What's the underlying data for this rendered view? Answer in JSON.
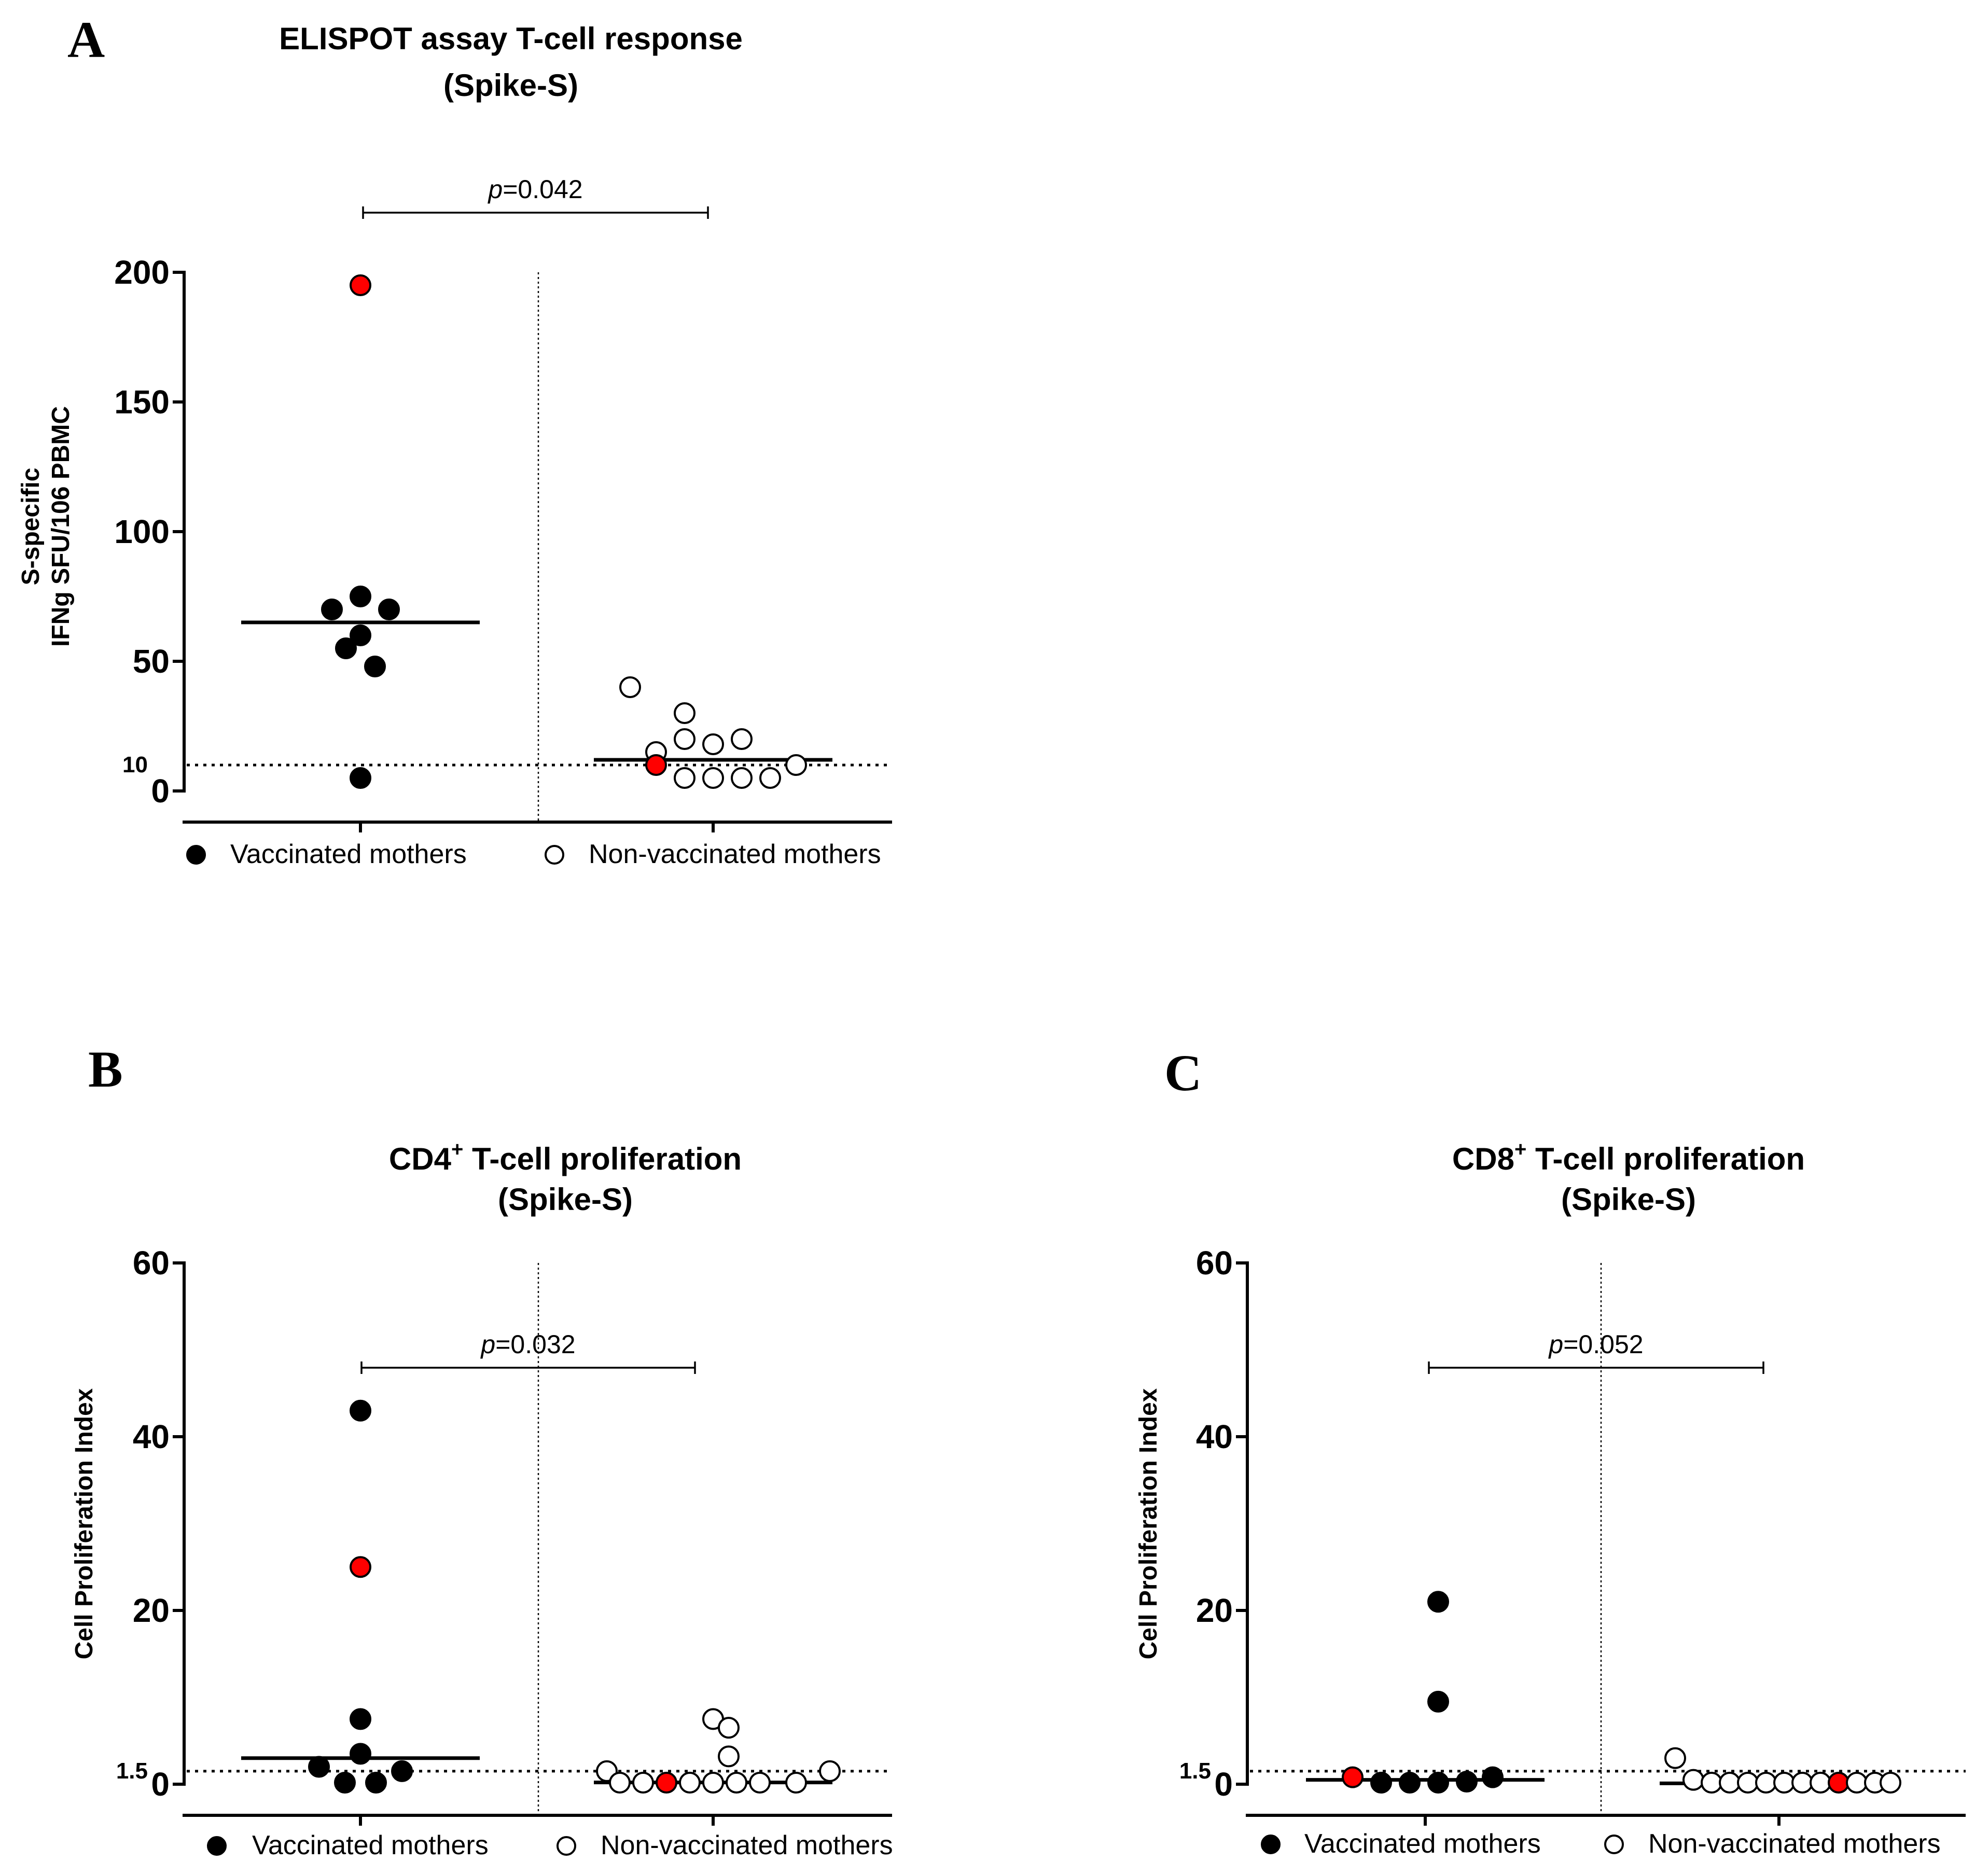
{
  "colors": {
    "ink": "#000000",
    "highlight": "#ff0000",
    "open_fill": "#ffffff"
  },
  "chart_data": [
    {
      "panel_label": "A",
      "type": "scatter",
      "title_line1": "ELISPOT assay T-cell response",
      "title_line2": "(Spike-S)",
      "ylabel_line1": "S-specific",
      "ylabel_line2": "IFNg SFU/106 PBMC",
      "ylim": [
        0,
        200
      ],
      "yticks": [
        0,
        50,
        100,
        150,
        200
      ],
      "threshold": {
        "value": 10,
        "label": "10"
      },
      "pvalue": {
        "prefix": "p",
        "text": "=0.042"
      },
      "groups": [
        {
          "name": "Vaccinated mothers",
          "marker": "filled",
          "median": 65,
          "values": [
            195,
            75,
            70,
            70,
            60,
            55,
            48,
            5
          ],
          "highlight": [
            0
          ]
        },
        {
          "name": "Non-vaccinated mothers",
          "marker": "open",
          "median": 12,
          "values": [
            40,
            30,
            20,
            20,
            18,
            15,
            10,
            10,
            5,
            5,
            5,
            5
          ],
          "highlight": [
            7
          ]
        }
      ]
    },
    {
      "panel_label": "B",
      "type": "scatter",
      "title_prefix": "CD4",
      "title_sup": "+",
      "title_line1": " T-cell proliferation",
      "title_line2": "(Spike-S)",
      "ylabel_line1": "Cell Proliferation Index",
      "ylim": [
        0,
        60
      ],
      "yticks": [
        0,
        20,
        40,
        60
      ],
      "threshold": {
        "value": 1.5,
        "label": "1.5"
      },
      "pvalue": {
        "prefix": "p",
        "text": "=0.032"
      },
      "groups": [
        {
          "name": "Vaccinated mothers",
          "marker": "filled",
          "median": 3,
          "values": [
            43,
            25,
            7.5,
            3.5,
            2,
            1.5,
            0,
            0
          ],
          "highlight": [
            1
          ]
        },
        {
          "name": "Non-vaccinated mothers",
          "marker": "open",
          "median": 0.2,
          "values": [
            7.5,
            6.5,
            3.2,
            1.5,
            1.5,
            0,
            0,
            0,
            0,
            0,
            0,
            0,
            0
          ],
          "highlight": [
            7
          ]
        }
      ]
    },
    {
      "panel_label": "C",
      "type": "scatter",
      "title_prefix": "CD8",
      "title_sup": "+",
      "title_line1": " T-cell proliferation",
      "title_line2": "(Spike-S)",
      "ylabel_line1": "Cell Proliferation Index",
      "ylim": [
        0,
        60
      ],
      "yticks": [
        0,
        20,
        40,
        60
      ],
      "threshold": {
        "value": 1.5,
        "label": "1.5"
      },
      "pvalue": {
        "prefix": "p",
        "text": "=0.052"
      },
      "groups": [
        {
          "name": "Vaccinated mothers",
          "marker": "filled",
          "median": 0.5,
          "values": [
            21,
            9.5,
            0.8,
            0.8,
            0.3,
            0,
            0,
            0
          ],
          "highlight": [
            2
          ]
        },
        {
          "name": "Non-vaccinated mothers",
          "marker": "open",
          "median": 0.1,
          "values": [
            3,
            0.5,
            0,
            0,
            0,
            0,
            0,
            0,
            0,
            0,
            0,
            0,
            0
          ],
          "highlight": [
            9
          ]
        }
      ]
    }
  ]
}
